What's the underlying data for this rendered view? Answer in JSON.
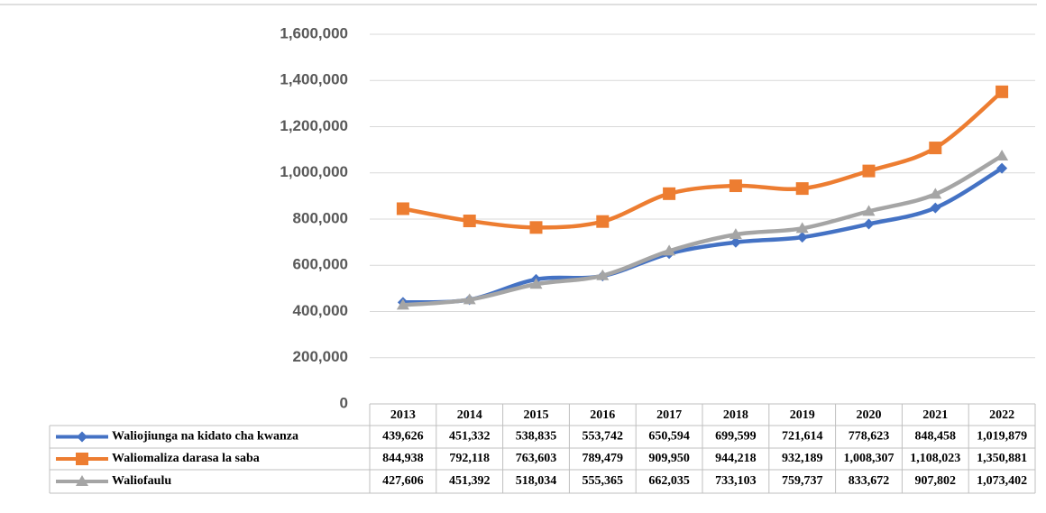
{
  "chart_data": {
    "type": "line",
    "categories": [
      "2013",
      "2014",
      "2015",
      "2016",
      "2017",
      "2018",
      "2019",
      "2020",
      "2021",
      "2022"
    ],
    "series": [
      {
        "name": "Waliojiunga na kidato cha kwanza",
        "color": "#4472c4",
        "marker": "diamond",
        "values": [
          439626,
          451332,
          538835,
          553742,
          650594,
          699599,
          721614,
          778623,
          848458,
          1019879
        ],
        "value_labels": [
          "439,626",
          "451,332",
          "538,835",
          "553,742",
          "650,594",
          "699,599",
          "721,614",
          "778,623",
          "848,458",
          "1,019,879"
        ]
      },
      {
        "name": "Waliomaliza darasa la saba",
        "color": "#ed7d31",
        "marker": "square",
        "values": [
          844938,
          792118,
          763603,
          789479,
          909950,
          944218,
          932189,
          1008307,
          1108023,
          1350881
        ],
        "value_labels": [
          "844,938",
          "792,118",
          "763,603",
          "789,479",
          "909,950",
          "944,218",
          "932,189",
          "1,008,307",
          "1,108,023",
          "1,350,881"
        ]
      },
      {
        "name": "Waliofaulu",
        "color": "#a5a5a5",
        "marker": "triangle",
        "values": [
          427606,
          451392,
          518034,
          555365,
          662035,
          733103,
          759737,
          833672,
          907802,
          1073402
        ],
        "value_labels": [
          "427,606",
          "451,392",
          "518,034",
          "555,365",
          "662,035",
          "733,103",
          "759,737",
          "833,672",
          "907,802",
          "1,073,402"
        ]
      }
    ],
    "ylim": [
      0,
      1600000
    ],
    "yticks": [
      0,
      {
        "value": 200000,
        "label": "200,000"
      },
      {
        "value": 400000,
        "label": "400,000"
      },
      {
        "value": 600000,
        "label": "600,000"
      },
      {
        "value": 800000,
        "label": "800,000"
      },
      {
        "value": 1000000,
        "label": "1,000,000"
      },
      {
        "value": 1200000,
        "label": "1,200,000"
      },
      {
        "value": 1400000,
        "label": "1,400,000"
      },
      {
        "value": 1600000,
        "label": "1,600,000"
      }
    ],
    "grid": true
  }
}
